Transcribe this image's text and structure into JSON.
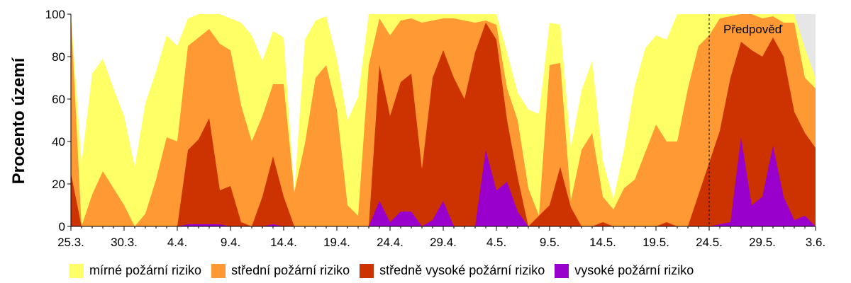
{
  "chart_data": {
    "type": "area",
    "stacked": false,
    "title": "",
    "ylabel": "Procento území",
    "xlabel": "",
    "ylim": [
      0,
      100
    ],
    "yticks": [
      0,
      20,
      40,
      60,
      80,
      100
    ],
    "x_tick_labels": [
      "25.3.",
      "30.3.",
      "4.4.",
      "9.4.",
      "14.4.",
      "19.4.",
      "24.4.",
      "29.4.",
      "4.5.",
      "9.5.",
      "14.5.",
      "19.5.",
      "24.5.",
      "29.5.",
      "3.6."
    ],
    "x_tick_days": [
      0,
      5,
      10,
      15,
      20,
      25,
      30,
      35,
      40,
      45,
      50,
      55,
      60,
      65,
      70
    ],
    "forecast_start_day": 60,
    "forecast_label": "Předpověď",
    "background_forecast_color": "#e6e6e6",
    "legend_position": "bottom",
    "series": [
      {
        "name": "mírné požární riziko",
        "color": "#ffff66",
        "values": [
          100,
          30,
          72,
          79,
          65,
          52,
          28,
          58,
          73,
          90,
          85,
          98,
          100,
          100,
          100,
          98,
          96,
          90,
          78,
          92,
          89,
          16,
          88,
          97,
          99,
          79,
          50,
          61,
          100,
          100,
          100,
          100,
          100,
          100,
          100,
          100,
          100,
          100,
          100,
          100,
          100,
          82,
          63,
          55,
          53,
          96,
          95,
          37,
          64,
          78,
          31,
          13,
          36,
          66,
          84,
          90,
          88,
          100,
          100,
          100,
          100,
          100,
          100,
          100,
          100,
          100,
          100,
          100,
          100,
          84,
          70
        ]
      },
      {
        "name": "střední požární riziko",
        "color": "#ff9933",
        "values": [
          100,
          0,
          15,
          26,
          18,
          10,
          0,
          6,
          22,
          42,
          40,
          85,
          89,
          93,
          86,
          83,
          57,
          40,
          52,
          67,
          67,
          16,
          39,
          70,
          76,
          55,
          10,
          5,
          76,
          98,
          90,
          97,
          98,
          96,
          97,
          98,
          98,
          97,
          96,
          97,
          95,
          65,
          50,
          18,
          5,
          76,
          77,
          12,
          36,
          44,
          14,
          8,
          18,
          22,
          35,
          48,
          40,
          40,
          65,
          85,
          90,
          98,
          99,
          100,
          100,
          98,
          99,
          96,
          96,
          70,
          65
        ]
      },
      {
        "name": "středně vysoké požární riziko",
        "color": "#cc3300",
        "values": [
          25,
          0,
          0,
          0,
          0,
          0,
          0,
          0,
          0,
          0,
          0,
          36,
          41,
          51,
          17,
          19,
          2,
          0,
          14,
          33,
          14,
          0,
          0,
          0,
          0,
          0,
          0,
          0,
          0,
          76,
          52,
          68,
          72,
          27,
          70,
          83,
          70,
          60,
          82,
          96,
          88,
          50,
          23,
          0,
          5,
          10,
          28,
          9,
          0,
          0,
          2,
          0,
          0,
          0,
          0,
          0,
          2,
          0,
          0,
          15,
          30,
          45,
          70,
          87,
          83,
          80,
          89,
          80,
          54,
          44,
          37
        ]
      },
      {
        "name": "vysoké požární riziko",
        "color": "#9900cc",
        "values": [
          0,
          0,
          0,
          0,
          0,
          0,
          0,
          0,
          0,
          0,
          0,
          1,
          1,
          1,
          1,
          0,
          0,
          0,
          0,
          1,
          0,
          0,
          0,
          0,
          0,
          0,
          0,
          0,
          0,
          12,
          2,
          7,
          7,
          0,
          3,
          12,
          0,
          0,
          0,
          36,
          17,
          21,
          7,
          0,
          0,
          0,
          0,
          0,
          0,
          0,
          0,
          0,
          0,
          0,
          0,
          0,
          0,
          0,
          0,
          0,
          0,
          1,
          2,
          42,
          10,
          14,
          38,
          14,
          3,
          5,
          0
        ]
      }
    ]
  }
}
